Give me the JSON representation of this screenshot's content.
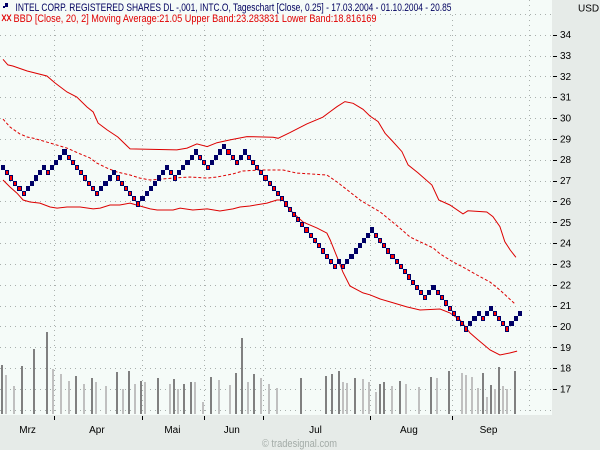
{
  "header": {
    "instrument_line": "INTEL CORP. REGISTERED SHARES DL -,001, INTC.O, Tageschart [Close, 0.25] - 17.03.2004 - 01.10.2004 - 20.85",
    "indicator_line": "BBD [Close, 20, 2] Moving Average:21.05 Upper Band:23.283831 Lower Band:18.816169"
  },
  "axis": {
    "currency": "USD"
  },
  "footer": {
    "watermark": "© tradesignal.com"
  },
  "colors": {
    "plot_bg": "#f5fbf8",
    "panel_bg": "#e6ebe8",
    "grid": "#a9b0ad",
    "up_box": "#000066",
    "down_box_fill": "#ff0000",
    "band": "#dd0000",
    "volume_dark": "#808080",
    "volume_light": "#c0c0c0",
    "legend_line1": "#00005f",
    "legend_line2": "#e00000"
  },
  "chart_data": {
    "type": "line",
    "subtype": "renko-box-chart with Bollinger bands and volume",
    "title": "INTEL CORP. REGISTERED SHARES DL -,001, INTC.O, Tageschart [Close, 0.25] - 17.03.2004 - 01.10.2004 - 20.85",
    "subtitle": "BBD [Close, 20, 2] Moving Average:21.05 Upper Band:23.283831 Lower Band:18.816169",
    "xlabel": "",
    "ylabel": "USD",
    "ylim": [
      15.8,
      35.7
    ],
    "grid": true,
    "legend_position": "top-left",
    "y_ticks": [
      34,
      33,
      32,
      31,
      30,
      29,
      28,
      27,
      26,
      25,
      24,
      23,
      22,
      21,
      20,
      19,
      18,
      17
    ],
    "grid_prices": [
      16,
      17,
      18,
      19,
      20,
      21,
      22,
      23,
      24,
      25,
      26,
      27,
      28,
      29,
      30,
      31,
      32,
      33,
      34,
      35
    ],
    "x_tick_labels": [
      {
        "label": "Mrz",
        "pos": 6.5
      },
      {
        "label": "Apr",
        "pos": 23.4
      },
      {
        "label": "Mai",
        "pos": 41.8
      },
      {
        "label": "Jun",
        "pos": 56.3
      },
      {
        "label": "Jul",
        "pos": 76.7
      },
      {
        "label": "Aug",
        "pos": 99.5
      },
      {
        "label": "Sep",
        "pos": 118.9
      }
    ],
    "x_tick_marks": [
      12.9,
      34.5,
      49.5,
      63.8,
      90.0,
      109.9
    ],
    "x_gridlines": [
      12.9,
      34.5,
      49.5,
      63.8,
      90.0,
      109.9,
      128.8
    ],
    "renko": {
      "box_size": 0.25,
      "start_low": 27.5,
      "last_close": 20.85,
      "legs": [
        [
          "up",
          1
        ],
        [
          "down",
          5
        ],
        [
          "up",
          5
        ],
        [
          "down",
          1
        ],
        [
          "up",
          4
        ],
        [
          "down",
          8
        ],
        [
          "up",
          4
        ],
        [
          "down",
          6
        ],
        [
          "up",
          7
        ],
        [
          "down",
          2
        ],
        [
          "up",
          5
        ],
        [
          "down",
          3
        ],
        [
          "up",
          4
        ],
        [
          "down",
          3
        ],
        [
          "up",
          2
        ],
        [
          "down",
          22
        ],
        [
          "up",
          1
        ],
        [
          "down",
          1
        ],
        [
          "up",
          7
        ],
        [
          "down",
          13
        ],
        [
          "up",
          2
        ],
        [
          "down",
          8
        ],
        [
          "up",
          3
        ],
        [
          "down",
          1
        ],
        [
          "up",
          2
        ],
        [
          "down",
          4
        ],
        [
          "up",
          3
        ]
      ]
    },
    "series": [
      {
        "id": "upper-band",
        "name": "Upper Band",
        "style": "solid",
        "last": 23.283831,
        "points": [
          [
            0,
            32.82
          ],
          [
            1.2,
            32.55
          ],
          [
            2.4,
            32.5
          ],
          [
            5.9,
            32.26
          ],
          [
            10.7,
            32.02
          ],
          [
            12.7,
            31.68
          ],
          [
            15.6,
            31.25
          ],
          [
            18,
            31.01
          ],
          [
            20.5,
            30.53
          ],
          [
            22,
            30.29
          ],
          [
            23.2,
            29.76
          ],
          [
            25.4,
            29.43
          ],
          [
            28,
            29.09
          ],
          [
            31,
            28.52
          ],
          [
            42.4,
            28.47
          ],
          [
            44.9,
            28.56
          ],
          [
            47.3,
            28.76
          ],
          [
            49.8,
            28.63
          ],
          [
            52.2,
            28.82
          ],
          [
            55.4,
            28.95
          ],
          [
            59.5,
            29.11
          ],
          [
            65.9,
            29.08
          ],
          [
            67.1,
            29.03
          ],
          [
            70,
            29.3
          ],
          [
            74.1,
            29.72
          ],
          [
            78,
            30.04
          ],
          [
            79.8,
            30.31
          ],
          [
            81.5,
            30.55
          ],
          [
            83.4,
            30.79
          ],
          [
            85.4,
            30.71
          ],
          [
            87.8,
            30.42
          ],
          [
            89.5,
            30.1
          ],
          [
            91.5,
            29.83
          ],
          [
            93.2,
            29.27
          ],
          [
            95.1,
            28.87
          ],
          [
            97.3,
            28.39
          ],
          [
            98.8,
            27.75
          ],
          [
            101.2,
            27.38
          ],
          [
            104.6,
            26.79
          ],
          [
            106.3,
            26.07
          ],
          [
            109,
            25.83
          ],
          [
            112.2,
            25.4
          ],
          [
            113.4,
            25.55
          ],
          [
            118,
            25.49
          ],
          [
            119.5,
            25.27
          ],
          [
            121.2,
            24.79
          ],
          [
            122.4,
            24.07
          ],
          [
            123.7,
            23.67
          ],
          [
            125.1,
            23.32
          ]
        ]
      },
      {
        "id": "moving-average",
        "name": "Moving Average",
        "style": "dashed",
        "last": 21.05,
        "points": [
          [
            0,
            29.95
          ],
          [
            1.7,
            29.57
          ],
          [
            4.1,
            29.24
          ],
          [
            5.9,
            29.09
          ],
          [
            7.3,
            29.04
          ],
          [
            9.8,
            28.9
          ],
          [
            12.2,
            28.76
          ],
          [
            13.9,
            28.66
          ],
          [
            15.6,
            28.56
          ],
          [
            18.8,
            28.28
          ],
          [
            21.2,
            28.09
          ],
          [
            22.9,
            27.84
          ],
          [
            25.4,
            27.6
          ],
          [
            27.8,
            27.41
          ],
          [
            31,
            27.27
          ],
          [
            33.4,
            27.12
          ],
          [
            35.9,
            27.03
          ],
          [
            41.5,
            27.12
          ],
          [
            45.6,
            27.17
          ],
          [
            49.8,
            27.12
          ],
          [
            52.2,
            27.17
          ],
          [
            56.1,
            27.32
          ],
          [
            58.5,
            27.46
          ],
          [
            62.7,
            27.51
          ],
          [
            68.3,
            27.51
          ],
          [
            71.7,
            27.36
          ],
          [
            79,
            27.27
          ],
          [
            81.5,
            26.93
          ],
          [
            84.6,
            26.45
          ],
          [
            87.1,
            26.07
          ],
          [
            89.5,
            25.78
          ],
          [
            92,
            25.49
          ],
          [
            94.4,
            25.11
          ],
          [
            96.8,
            24.72
          ],
          [
            99.3,
            24.29
          ],
          [
            102.4,
            24
          ],
          [
            104.9,
            23.77
          ],
          [
            106.6,
            23.48
          ],
          [
            109.8,
            23.09
          ],
          [
            112.2,
            22.85
          ],
          [
            115.6,
            22.47
          ],
          [
            118.8,
            22.13
          ],
          [
            121.2,
            21.75
          ],
          [
            124.9,
            21.08
          ]
        ]
      },
      {
        "id": "lower-band",
        "name": "Lower Band",
        "style": "solid",
        "last": 18.816169,
        "points": [
          [
            0,
            27.03
          ],
          [
            1.7,
            26.69
          ],
          [
            3.4,
            26.4
          ],
          [
            4.9,
            26.07
          ],
          [
            6.6,
            25.97
          ],
          [
            9,
            25.92
          ],
          [
            11.5,
            25.73
          ],
          [
            13.2,
            25.68
          ],
          [
            15.6,
            25.73
          ],
          [
            18.8,
            25.73
          ],
          [
            22,
            25.64
          ],
          [
            23.7,
            25.68
          ],
          [
            26.1,
            25.83
          ],
          [
            28.5,
            25.83
          ],
          [
            31,
            25.92
          ],
          [
            33.4,
            25.78
          ],
          [
            35.9,
            25.64
          ],
          [
            37.6,
            25.59
          ],
          [
            41.5,
            25.59
          ],
          [
            43.2,
            25.68
          ],
          [
            46.3,
            25.59
          ],
          [
            49.8,
            25.64
          ],
          [
            52.9,
            25.54
          ],
          [
            56.1,
            25.64
          ],
          [
            57.8,
            25.73
          ],
          [
            60.2,
            25.78
          ],
          [
            64.4,
            25.92
          ],
          [
            66.8,
            26.07
          ],
          [
            68.3,
            26.07
          ],
          [
            70,
            25.59
          ],
          [
            73.2,
            25.01
          ],
          [
            76.6,
            24.72
          ],
          [
            79,
            24.48
          ],
          [
            79.8,
            24.15
          ],
          [
            81.5,
            23.33
          ],
          [
            82.9,
            22.61
          ],
          [
            84.6,
            21.94
          ],
          [
            87.8,
            21.61
          ],
          [
            89.5,
            21.52
          ],
          [
            92,
            21.32
          ],
          [
            94.4,
            21.18
          ],
          [
            98.5,
            20.94
          ],
          [
            101.7,
            20.79
          ],
          [
            106.6,
            20.84
          ],
          [
            109,
            20.65
          ],
          [
            111.5,
            20.31
          ],
          [
            113.9,
            19.69
          ],
          [
            115.6,
            19.4
          ],
          [
            118.8,
            18.87
          ],
          [
            121.2,
            18.63
          ],
          [
            123.7,
            18.73
          ],
          [
            125.4,
            18.82
          ]
        ]
      }
    ],
    "volume_note": "relative bar heights (unlabeled volume axis)",
    "volume": [
      [
        0,
        49,
        "dark"
      ],
      [
        1,
        39,
        "light"
      ],
      [
        2.9,
        28,
        "light"
      ],
      [
        4.9,
        48,
        "dark"
      ],
      [
        7.8,
        65,
        "dark"
      ],
      [
        11,
        82,
        "dark"
      ],
      [
        12.4,
        45,
        "light"
      ],
      [
        14.4,
        40,
        "light"
      ],
      [
        16.3,
        33,
        "light"
      ],
      [
        18.1,
        38,
        "dark"
      ],
      [
        20,
        30,
        "light"
      ],
      [
        22,
        36,
        "dark"
      ],
      [
        22.9,
        32,
        "light"
      ],
      [
        25.4,
        28,
        "light"
      ],
      [
        28,
        42,
        "dark"
      ],
      [
        29.5,
        25,
        "light"
      ],
      [
        31,
        43,
        "dark"
      ],
      [
        32.4,
        30,
        "light"
      ],
      [
        33.9,
        33,
        "dark"
      ],
      [
        34.9,
        32,
        "light"
      ],
      [
        38,
        36,
        "dark"
      ],
      [
        41,
        30,
        "light"
      ],
      [
        42,
        35,
        "dark"
      ],
      [
        42.9,
        25,
        "light"
      ],
      [
        44.4,
        30,
        "dark"
      ],
      [
        46.1,
        32,
        "dark"
      ],
      [
        47.1,
        32,
        "light"
      ],
      [
        49.1,
        12,
        "light"
      ],
      [
        51,
        37,
        "dark"
      ],
      [
        52.9,
        34,
        "light"
      ],
      [
        55.6,
        29,
        "light"
      ],
      [
        57.1,
        41,
        "dark"
      ],
      [
        58.5,
        76,
        "dark"
      ],
      [
        60,
        32,
        "light"
      ],
      [
        61.5,
        40,
        "dark"
      ],
      [
        63.2,
        36,
        "light"
      ],
      [
        65.1,
        30,
        "light"
      ],
      [
        67.1,
        26,
        "light"
      ],
      [
        72.9,
        36,
        "dark"
      ],
      [
        79,
        38,
        "dark"
      ],
      [
        80.5,
        40,
        "dark"
      ],
      [
        82.2,
        43,
        "dark"
      ],
      [
        83.2,
        32,
        "light"
      ],
      [
        84.1,
        31,
        "light"
      ],
      [
        86.1,
        36,
        "dark"
      ],
      [
        88,
        35,
        "light"
      ],
      [
        89.5,
        32,
        "light"
      ],
      [
        91.2,
        22,
        "light"
      ],
      [
        92.2,
        30,
        "dark"
      ],
      [
        93.2,
        32,
        "dark"
      ],
      [
        95.1,
        28,
        "light"
      ],
      [
        97.1,
        33,
        "dark"
      ],
      [
        98.5,
        30,
        "light"
      ],
      [
        101.7,
        27,
        "light"
      ],
      [
        104.6,
        37,
        "dark"
      ],
      [
        106.1,
        36,
        "light"
      ],
      [
        109.1,
        43,
        "dark"
      ],
      [
        112.2,
        41,
        "light"
      ],
      [
        113.2,
        39,
        "light"
      ],
      [
        114.6,
        37,
        "light"
      ],
      [
        116.1,
        26,
        "light"
      ],
      [
        117.3,
        41,
        "dark"
      ],
      [
        118.3,
        17,
        "light"
      ],
      [
        119.3,
        29,
        "dark"
      ],
      [
        120.2,
        25,
        "light"
      ],
      [
        121.2,
        47,
        "dark"
      ],
      [
        122.2,
        28,
        "light"
      ],
      [
        123.2,
        25,
        "light"
      ],
      [
        125.1,
        43,
        "dark"
      ]
    ]
  }
}
